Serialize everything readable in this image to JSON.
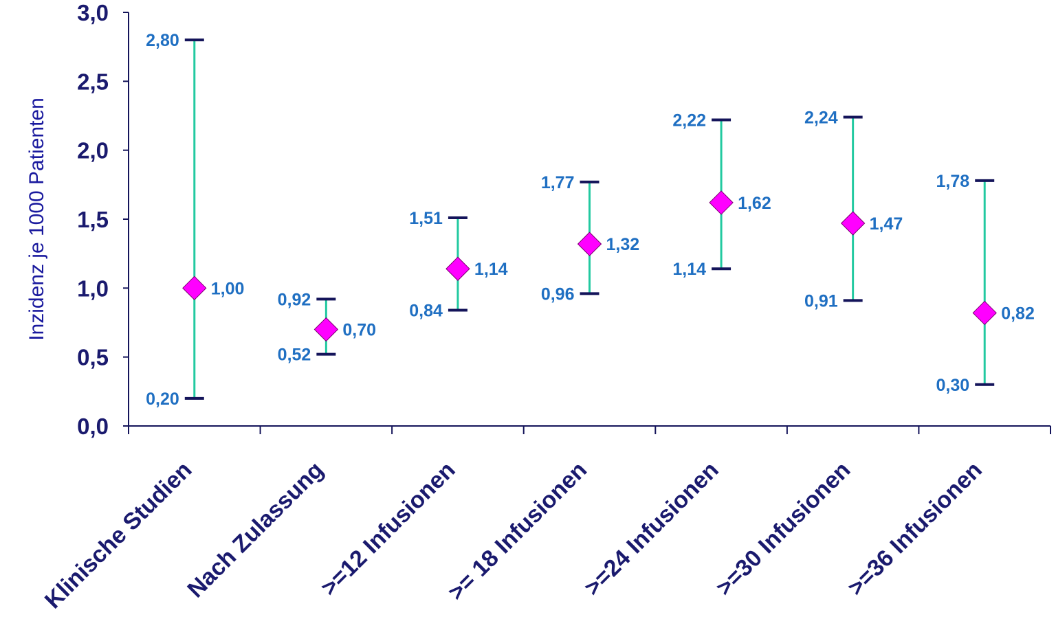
{
  "chart_data": {
    "type": "scatter",
    "ylabel": "Inzidenz je 1000 Patienten",
    "xlabel": "",
    "ylim": [
      0,
      3.0
    ],
    "yticks": [
      0.0,
      0.5,
      1.0,
      1.5,
      2.0,
      2.5,
      3.0
    ],
    "ytick_labels": [
      "0,0",
      "0,5",
      "1,0",
      "1,5",
      "2,0",
      "2,5",
      "3,0"
    ],
    "categories": [
      "Klinische Studien",
      "Nach Zulassung",
      ">=12 Infusionen",
      ">= 18 Infusionen",
      ">=24 Infusionen",
      ">=30 Infusionen",
      ">=36 Infusionen"
    ],
    "values": [
      1.0,
      0.7,
      1.14,
      1.32,
      1.62,
      1.47,
      0.82
    ],
    "lower": [
      0.2,
      0.52,
      0.84,
      0.96,
      1.14,
      0.91,
      0.3
    ],
    "upper": [
      2.8,
      0.92,
      1.51,
      1.77,
      2.22,
      2.24,
      1.78
    ],
    "value_labels": [
      "1,00",
      "0,70",
      "1,14",
      "1,32",
      "1,62",
      "1,47",
      "0,82"
    ],
    "lower_labels": [
      "0,20",
      "0,52",
      "0,84",
      "0,96",
      "1,14",
      "0,91",
      "0,30"
    ],
    "upper_labels": [
      "2,80",
      "0,92",
      "1,51",
      "1,77",
      "2,22",
      "2,24",
      "1,78"
    ],
    "grid": false,
    "legend": "none",
    "colors": {
      "marker": "#ff00ff",
      "errorbar": "#22c9a0",
      "cap": "#14145a",
      "axis": "#14145a",
      "tick_text": "#1a1a6e",
      "value_text": "#1f6fc2",
      "ylabel_text": "#1a1a9e"
    }
  }
}
